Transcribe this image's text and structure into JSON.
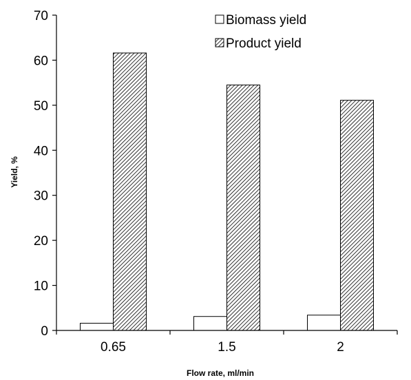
{
  "chart_data": {
    "type": "bar",
    "categories": [
      "0.65",
      "1.5",
      "2"
    ],
    "series": [
      {
        "name": "Biomass yield",
        "values": [
          1.6,
          3.1,
          3.4
        ],
        "pattern": "solid-white"
      },
      {
        "name": "Product yield",
        "values": [
          61.6,
          54.5,
          51.1
        ],
        "pattern": "diagonal-hatch"
      }
    ],
    "title": "",
    "xlabel": "Flow rate, ml/min",
    "ylabel": "Yield, %",
    "ylim": [
      0,
      70
    ],
    "yticks": [
      "0",
      "10",
      "20",
      "30",
      "40",
      "50",
      "60",
      "70"
    ],
    "grid": false,
    "legend_position": "top-right"
  }
}
